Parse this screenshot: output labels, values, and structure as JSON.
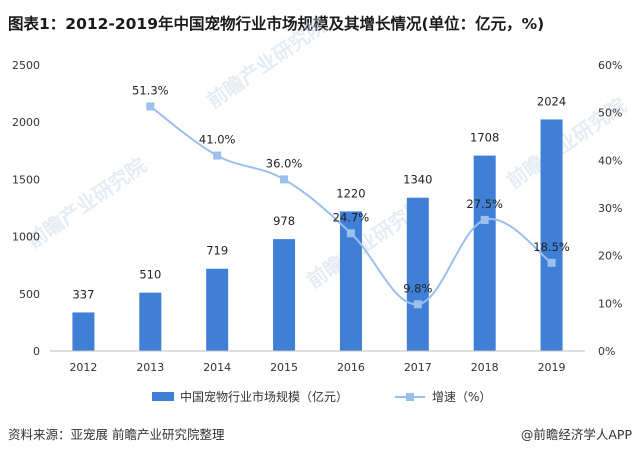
{
  "title": "图表1：2012-2019年中国宠物行业市场规模及其增长情况(单位：亿元，%)",
  "source": "资料来源：亚宠展 前瞻产业研究院整理",
  "brand": "@前瞻经济学人APP",
  "watermark": "前瞻产业研究院",
  "chart_data": {
    "type": "bar",
    "categories": [
      "2012",
      "2013",
      "2014",
      "2015",
      "2016",
      "2017",
      "2018",
      "2019"
    ],
    "series": [
      {
        "name": "中国宠物行业市场规模（亿元）",
        "type": "bar",
        "axis": "left",
        "values": [
          337,
          510,
          719,
          978,
          1220,
          1340,
          1708,
          2024
        ],
        "labels": [
          "337",
          "510",
          "719",
          "978",
          "1220",
          "1340",
          "1708",
          "2024"
        ],
        "color": "#3f7fd6"
      },
      {
        "name": "增速（%）",
        "type": "line",
        "axis": "right",
        "values": [
          null,
          51.3,
          41.0,
          36.0,
          24.7,
          9.8,
          27.5,
          18.5
        ],
        "labels": [
          "",
          "51.3%",
          "41.0%",
          "36.0%",
          "24.7%",
          "9.8%",
          "27.5%",
          "18.5%"
        ],
        "color": "#9cc0ee"
      }
    ],
    "y_left": {
      "range": [
        0,
        2500
      ],
      "ticks": [
        0,
        500,
        1000,
        1500,
        2000,
        2500
      ],
      "tick_labels": [
        "0",
        "500",
        "1000",
        "1500",
        "2000",
        "2500"
      ]
    },
    "y_right": {
      "range": [
        0,
        60
      ],
      "ticks": [
        0,
        10,
        20,
        30,
        40,
        50,
        60
      ],
      "tick_labels": [
        "0%",
        "10%",
        "20%",
        "30%",
        "40%",
        "50%",
        "60%"
      ]
    },
    "grid": false,
    "legend_position": "bottom"
  }
}
